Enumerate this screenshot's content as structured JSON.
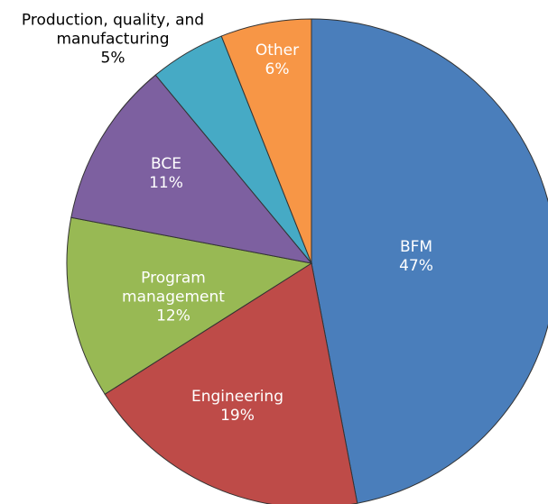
{
  "chart_data": {
    "type": "pie",
    "categories": [
      "BFM",
      "Engineering",
      "Program management",
      "BCE",
      "Production, quality, and manufacturing",
      "Other"
    ],
    "values": [
      47,
      19,
      12,
      11,
      5,
      6
    ],
    "value_labels": [
      "47%",
      "19%",
      "12%",
      "11%",
      "5%",
      "6%"
    ],
    "colors": [
      "#4a7ebb",
      "#be4b48",
      "#98b954",
      "#7d60a0",
      "#46aac5",
      "#f79646"
    ]
  }
}
